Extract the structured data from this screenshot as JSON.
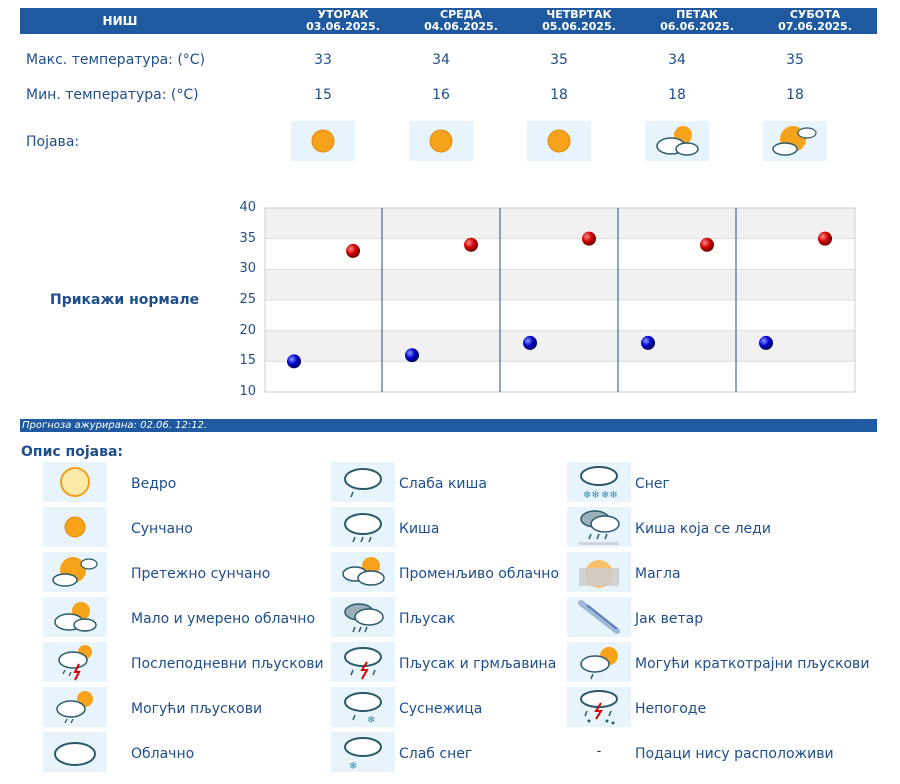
{
  "header": {
    "city": "НИШ",
    "days": [
      {
        "name": "УТОРАК",
        "date": "03.06.2025."
      },
      {
        "name": "СРЕДА",
        "date": "04.06.2025."
      },
      {
        "name": "ЧЕТВРТАК",
        "date": "05.06.2025."
      },
      {
        "name": "ПЕТАК",
        "date": "06.06.2025."
      },
      {
        "name": "СУБОТА",
        "date": "07.06.2025."
      }
    ]
  },
  "rows": {
    "max_label": "Макс. температура: (°C)",
    "min_label": "Мин. температура: (°C)",
    "phenomenon_label": "Појава:",
    "max": [
      "33",
      "34",
      "35",
      "34",
      "35"
    ],
    "min": [
      "15",
      "16",
      "18",
      "18",
      "18"
    ],
    "icons": [
      "sunny-icon",
      "sunny-icon",
      "sunny-icon",
      "partly-cloudy-icon",
      "mostly-sunny-icon"
    ]
  },
  "show_normals": "Прикажи нормале",
  "chart_data": {
    "type": "scatter",
    "ylim": [
      10,
      40
    ],
    "yticks": [
      "10",
      "15",
      "20",
      "25",
      "30",
      "35",
      "40"
    ],
    "series": [
      {
        "values": [
          15,
          16,
          18,
          18,
          18
        ],
        "color": "#0000cc"
      },
      {
        "values": [
          33,
          34,
          35,
          34,
          35
        ],
        "color": "#cc0000"
      }
    ]
  },
  "updated": "Прогноза ажурирана:  02.06. 12:12.",
  "legend": {
    "title": "Опис појава:",
    "items": [
      {
        "icon": "clear-sun-icon",
        "label": "Ведро"
      },
      {
        "icon": "sunny-icon",
        "label": "Сунчано"
      },
      {
        "icon": "mostly-sunny-icon",
        "label": "Претежно сунчано"
      },
      {
        "icon": "partly-cloudy-icon",
        "label": "Мало и умерено облачно"
      },
      {
        "icon": "afternoon-showers-icon",
        "label": "Послеподневни пљускови"
      },
      {
        "icon": "possible-showers-icon",
        "label": "Могући пљускови"
      },
      {
        "icon": "cloudy-icon",
        "label": "Облачно"
      },
      {
        "icon": "light-rain-icon",
        "label": "Слаба киша"
      },
      {
        "icon": "rain-icon",
        "label": "Киша"
      },
      {
        "icon": "variable-cloudy-icon",
        "label": "Променљиво облачно"
      },
      {
        "icon": "shower-icon",
        "label": "Пљусак"
      },
      {
        "icon": "thunderstorm-icon",
        "label": "Пљусак и грмљавина"
      },
      {
        "icon": "sleet-icon",
        "label": "Суснежица"
      },
      {
        "icon": "light-snow-icon",
        "label": "Слаб снег"
      },
      {
        "icon": "snow-icon",
        "label": "Снег"
      },
      {
        "icon": "freezing-rain-icon",
        "label": "Киша која се леди"
      },
      {
        "icon": "fog-icon",
        "label": "Магла"
      },
      {
        "icon": "strong-wind-icon",
        "label": "Јак ветар"
      },
      {
        "icon": "brief-showers-icon",
        "label": "Могући краткотрајни пљускови"
      },
      {
        "icon": "severe-storm-icon",
        "label": "Непогоде"
      },
      {
        "icon": "no-data-icon",
        "label": "Подаци нису расположиви",
        "symbol": "-"
      }
    ]
  }
}
